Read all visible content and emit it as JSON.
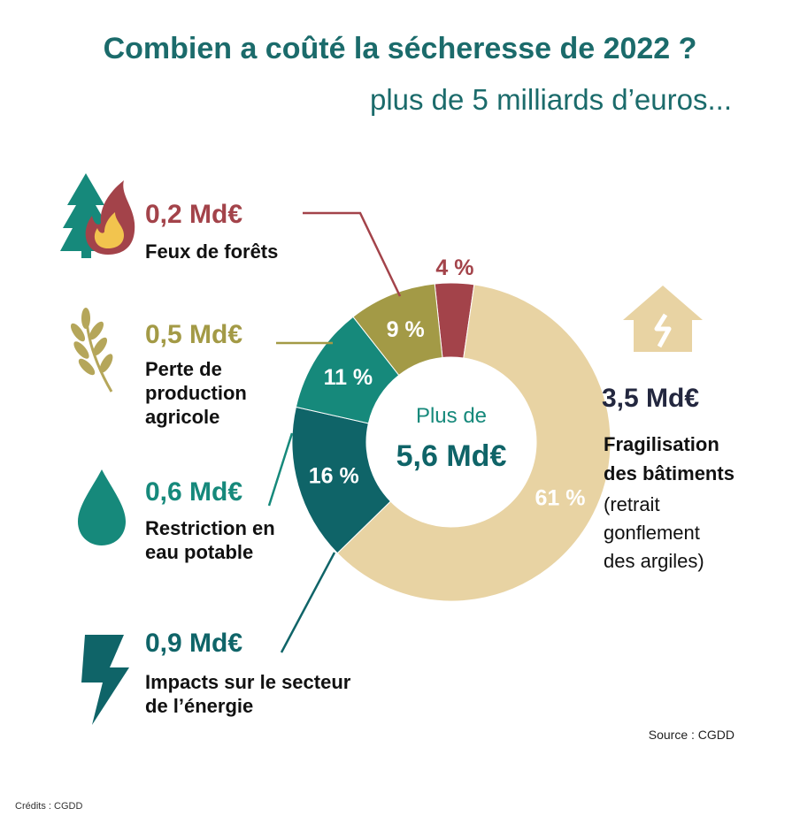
{
  "header": {
    "title": "Combien a coûté la sécheresse de 2022 ?",
    "subtitle": "plus de 5 milliards d’euros..."
  },
  "chart_data": {
    "type": "pie",
    "center_label": {
      "line1": "Plus de",
      "line2": "5,6 Md€"
    },
    "slices": [
      {
        "label_pct": "4 %",
        "value": 4,
        "amount": "0,2 Md€",
        "category": "Feux de forêts",
        "color": "#a3434a",
        "icon": "forest-fire-icon"
      },
      {
        "label_pct": "61 %",
        "value": 61,
        "amount": "3,5 Md€",
        "category": "Fragilisation des bâtiments",
        "detail": "(retrait gonflement des argiles)",
        "color": "#e8d3a3",
        "icon": "cracked-house-icon"
      },
      {
        "label_pct": "16 %",
        "value": 16,
        "amount": "0,9 Md€",
        "category": "Impacts sur le secteur de l’énergie",
        "color": "#0f6468",
        "icon": "lightning-icon"
      },
      {
        "label_pct": "11 %",
        "value": 11,
        "amount": "0,6 Md€",
        "category": "Restriction en eau potable",
        "color": "#16897b",
        "icon": "water-drop-icon"
      },
      {
        "label_pct": "9 %",
        "value": 9,
        "amount": "0,5 Md€",
        "category": "Perte de production agricole",
        "color": "#a39a46",
        "icon": "wheat-icon"
      }
    ]
  },
  "labels": {
    "forest_cat": "Feux de forêts",
    "agri_line1": "Perte de",
    "agri_line2": "production",
    "agri_line3": "agricole",
    "water_line1": "Restriction en",
    "water_line2": "eau potable",
    "energy_line1": "Impacts sur le secteur",
    "energy_line2": "de l’énergie",
    "building_line1": "Fragilisation",
    "building_line2": "des bâtiments",
    "building_detail1": "(retrait",
    "building_detail2": "gonflement",
    "building_detail3": "des argiles)"
  },
  "footer": {
    "source": "Source : CGDD",
    "credits": "Crédits : CGDD"
  }
}
